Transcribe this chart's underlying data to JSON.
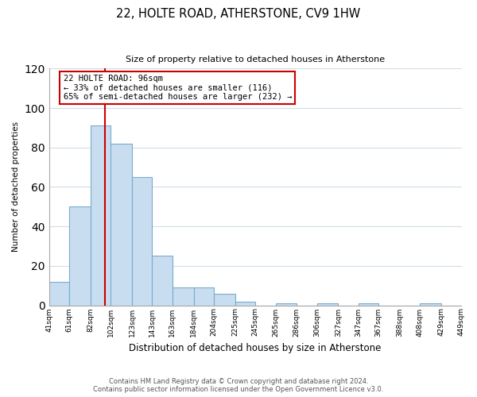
{
  "title": "22, HOLTE ROAD, ATHERSTONE, CV9 1HW",
  "subtitle": "Size of property relative to detached houses in Atherstone",
  "xlabel": "Distribution of detached houses by size in Atherstone",
  "ylabel": "Number of detached properties",
  "bar_color": "#c8ddef",
  "bar_edge_color": "#7aabcf",
  "background_color": "#ffffff",
  "grid_color": "#d0dde8",
  "bin_edges": [
    41,
    61,
    82,
    102,
    123,
    143,
    163,
    184,
    204,
    225,
    245,
    265,
    286,
    306,
    327,
    347,
    367,
    388,
    408,
    429,
    449
  ],
  "bin_labels": [
    "41sqm",
    "61sqm",
    "82sqm",
    "102sqm",
    "123sqm",
    "143sqm",
    "163sqm",
    "184sqm",
    "204sqm",
    "225sqm",
    "245sqm",
    "265sqm",
    "286sqm",
    "306sqm",
    "327sqm",
    "347sqm",
    "367sqm",
    "388sqm",
    "408sqm",
    "429sqm",
    "449sqm"
  ],
  "counts": [
    12,
    50,
    91,
    82,
    65,
    25,
    9,
    9,
    6,
    2,
    0,
    1,
    0,
    1,
    0,
    1,
    0,
    0,
    1,
    0
  ],
  "vline_x": 96,
  "vline_color": "#cc0000",
  "annotation_line1": "22 HOLTE ROAD: 96sqm",
  "annotation_line2": "← 33% of detached houses are smaller (116)",
  "annotation_line3": "65% of semi-detached houses are larger (232) →",
  "annotation_box_color": "#ffffff",
  "annotation_box_edge": "#cc0000",
  "ylim": [
    0,
    120
  ],
  "yticks": [
    0,
    20,
    40,
    60,
    80,
    100,
    120
  ],
  "footer_line1": "Contains HM Land Registry data © Crown copyright and database right 2024.",
  "footer_line2": "Contains public sector information licensed under the Open Government Licence v3.0."
}
